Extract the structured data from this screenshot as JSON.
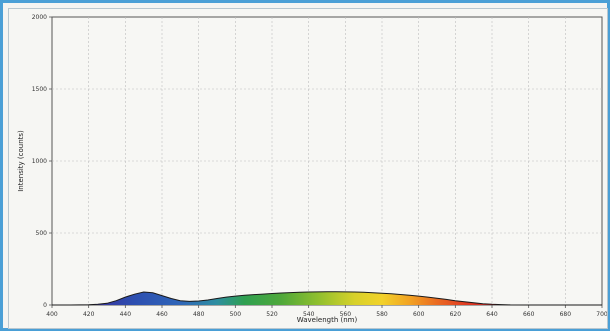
{
  "chart_data": {
    "type": "area",
    "title": "",
    "xlabel": "Wavelength (nm)",
    "ylabel": "Intensity (counts)",
    "xlim": [
      400,
      700
    ],
    "ylim": [
      0,
      2000
    ],
    "x_ticks": [
      "400",
      "420",
      "440",
      "460",
      "480",
      "500",
      "520",
      "540",
      "560",
      "580",
      "600",
      "620",
      "640",
      "660",
      "680",
      "700"
    ],
    "y_ticks": [
      "0",
      "500",
      "1000",
      "1500",
      "2000"
    ],
    "grid": true,
    "series": [
      {
        "x": [
          400,
          410,
          420,
          425,
          430,
          435,
          440,
          445,
          450,
          455,
          460,
          465,
          470,
          475,
          480,
          485,
          490,
          495,
          500,
          505,
          510,
          515,
          520,
          525,
          530,
          535,
          540,
          545,
          550,
          555,
          560,
          565,
          570,
          575,
          580,
          585,
          590,
          595,
          600,
          605,
          610,
          615,
          620,
          625,
          630,
          635,
          640,
          645,
          650,
          660,
          670,
          680,
          690,
          700
        ],
        "y": [
          0,
          0,
          2,
          5,
          12,
          30,
          55,
          75,
          90,
          85,
          65,
          45,
          30,
          25,
          28,
          35,
          45,
          55,
          62,
          68,
          72,
          76,
          80,
          83,
          86,
          88,
          90,
          91,
          92,
          92,
          91,
          90,
          88,
          85,
          82,
          78,
          73,
          68,
          62,
          55,
          47,
          39,
          30,
          22,
          15,
          9,
          5,
          3,
          1,
          0,
          0,
          0,
          0,
          0
        ]
      }
    ]
  }
}
